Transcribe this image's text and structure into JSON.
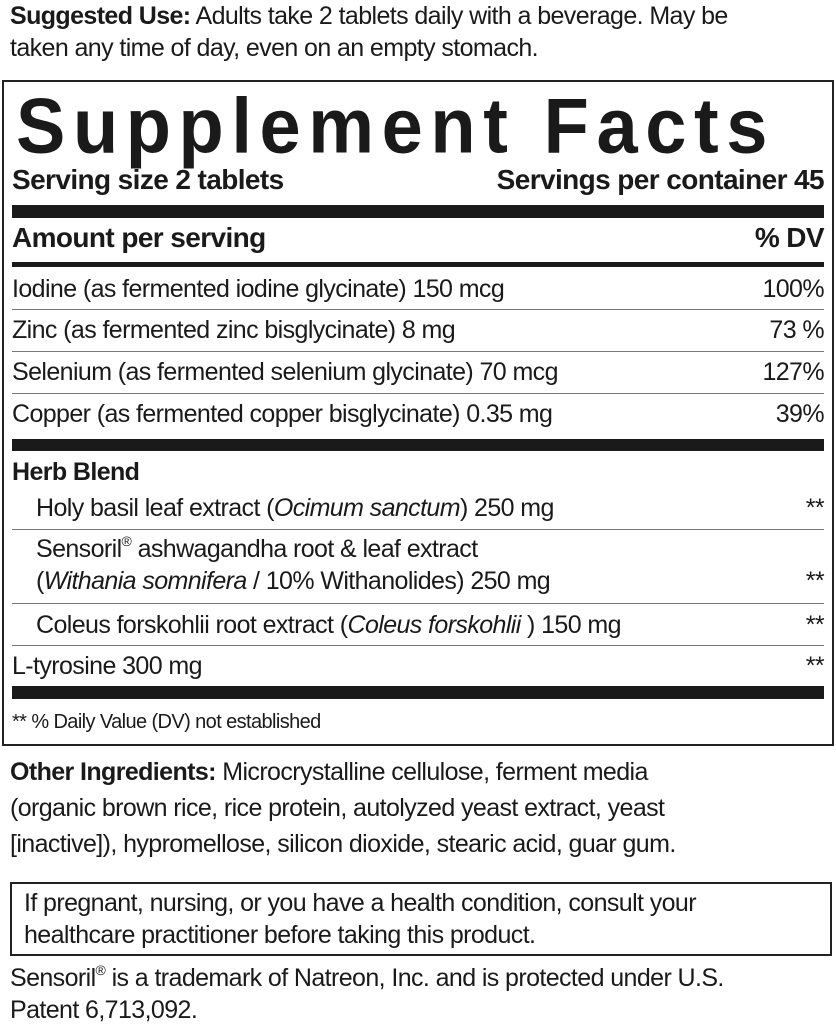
{
  "suggested_use": {
    "label": "Suggested Use:",
    "line1": " Adults take 2 tablets daily with a beverage. May be",
    "line2": "taken any time of day, even on an empty stomach."
  },
  "facts": {
    "title": "Supplement Facts",
    "serving_size": "Serving size 2 tablets",
    "servings_per_container": "Servings per container 45",
    "amount_header": "Amount per serving",
    "dv_header": "% DV",
    "nutrients": [
      {
        "name": "Iodine (as fermented iodine glycinate) 150 mcg",
        "dv": "100%"
      },
      {
        "name": "Zinc (as fermented zinc bisglycinate) 8 mg",
        "dv": "73 %"
      },
      {
        "name": "Selenium (as fermented selenium glycinate) 70 mcg",
        "dv": "127%"
      },
      {
        "name": "Copper (as fermented copper bisglycinate) 0.35 mg",
        "dv": "39%"
      }
    ],
    "herb_blend_label": "Herb Blend",
    "herbs": {
      "basil": {
        "pre": "Holy basil leaf extract (",
        "latin": "Ocimum sanctum",
        "post": ") 250 mg",
        "dv": "**"
      },
      "sensoril": {
        "pre": "Sensoril",
        "reg": "®",
        "line1": " ashwagandha root & leaf extract",
        "open": "(",
        "latin": "Withania somnifera",
        "post": " / 10% Withanolides) 250 mg",
        "dv": "**"
      },
      "coleus": {
        "pre": "Coleus forskohlii root extract (",
        "latin": "Coleus forskohlii",
        "post": " ) 150 mg",
        "dv": "**"
      }
    },
    "tyrosine": {
      "name": "L-tyrosine 300 mg",
      "dv": "**"
    },
    "footnote": "** % Daily Value (DV) not established"
  },
  "other": {
    "label": "Other Ingredients:",
    "line1": " Microcrystalline cellulose, ferment media",
    "line2": "(organic brown rice, rice protein, autolyzed yeast extract, yeast",
    "line3": "[inactive]), hypromellose, silicon dioxide, stearic acid, guar gum."
  },
  "warning": {
    "line1": "If pregnant, nursing, or you have a health condition, consult your",
    "line2": "healthcare practitioner before taking this product."
  },
  "trademark": {
    "pre": "Sensoril",
    "reg": "®",
    "line1": " is a trademark of Natreon, Inc. and is protected under U.S.",
    "line2": "Patent 6,713,092."
  }
}
